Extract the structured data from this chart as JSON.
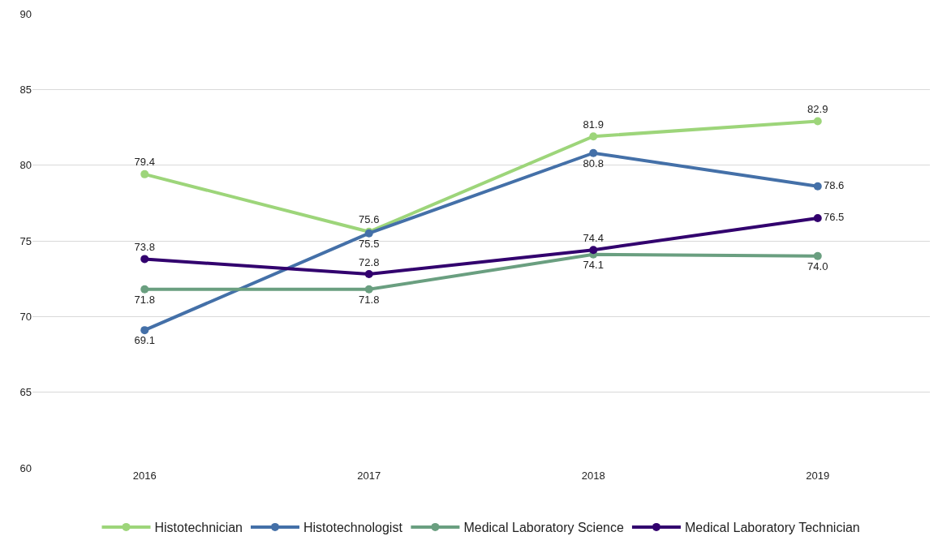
{
  "chart_data": {
    "type": "line",
    "categories": [
      "2016",
      "2017",
      "2018",
      "2019"
    ],
    "series": [
      {
        "name": "Histotechnician",
        "color": "#9dd57a",
        "values": [
          79.4,
          75.6,
          81.9,
          82.9
        ],
        "value_labels": [
          "79.4",
          "75.6",
          "81.9",
          "82.9"
        ]
      },
      {
        "name": "Histotechnologist",
        "color": "#4470a8",
        "values": [
          69.1,
          75.5,
          80.8,
          78.6
        ],
        "value_labels": [
          "69.1",
          "75.5",
          "80.8",
          "78.6"
        ]
      },
      {
        "name": "Medical Laboratory Science",
        "color": "#6a9f80",
        "values": [
          71.8,
          71.8,
          74.1,
          74.0
        ],
        "value_labels": [
          "71.8",
          "71.8",
          "74.1",
          "74.0"
        ]
      },
      {
        "name": "Medical Laboratory Technician",
        "color": "#32006e",
        "values": [
          73.8,
          72.8,
          74.4,
          76.5
        ],
        "value_labels": [
          "73.8",
          "72.8",
          "74.4",
          "76.5"
        ]
      }
    ],
    "ylim": [
      60,
      90
    ],
    "yticks": [
      60,
      65,
      70,
      75,
      80,
      85,
      90
    ],
    "grid": "y",
    "legend": "bottom",
    "marker": "circle",
    "line_style": "solid"
  }
}
